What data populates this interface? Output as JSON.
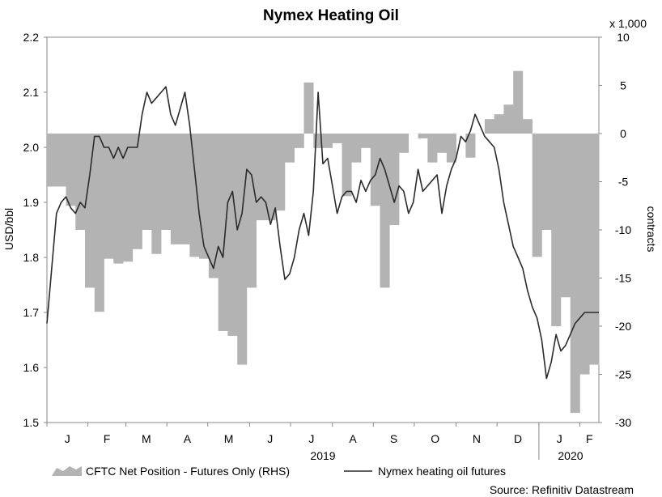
{
  "chart_data": {
    "type": "line+area",
    "title": "Nymex Heating Oil",
    "ylabel_left": "USD/bbl",
    "ylabel_right": "contracts",
    "right_multiplier": "x 1,000",
    "left_ylim": [
      1.5,
      2.2
    ],
    "left_ticks": [
      "1.5",
      "1.6",
      "1.7",
      "1.8",
      "1.9",
      "2.0",
      "2.1",
      "2.2"
    ],
    "right_ylim": [
      -30,
      10
    ],
    "right_ticks": [
      "-30",
      "-25",
      "-20",
      "-15",
      "-10",
      "-5",
      "0",
      "5",
      "10"
    ],
    "x_months": [
      "J",
      "F",
      "M",
      "A",
      "M",
      "J",
      "J",
      "A",
      "S",
      "O",
      "N",
      "D",
      "J",
      "F"
    ],
    "x_years": [
      "2019",
      "2020"
    ],
    "x_range_weeks": [
      0,
      58
    ],
    "month_starts_weeks": [
      0,
      4.3,
      8.3,
      12.6,
      16.9,
      21.3,
      25.6,
      30.0,
      34.3,
      38.6,
      43.0,
      47.3,
      51.7,
      56.0
    ],
    "series": [
      {
        "name": "CFTC Net Position - Futures Only (RHS)",
        "type": "area",
        "axis": "right",
        "x": [
          0,
          1,
          2,
          3,
          4,
          5,
          6,
          7,
          8,
          9,
          10,
          11,
          12,
          13,
          14,
          15,
          16,
          17,
          18,
          19,
          20,
          21,
          22,
          23,
          24,
          25,
          26,
          27,
          28,
          29,
          30,
          31,
          32,
          33,
          34,
          35,
          36,
          37,
          38,
          39,
          40,
          41,
          42,
          43,
          44,
          45,
          46,
          47,
          48,
          49,
          50,
          51,
          52,
          53,
          54,
          55,
          56,
          57,
          58
        ],
        "values": [
          -5.5,
          -5.5,
          -7.5,
          -10,
          -16,
          -18.5,
          -13,
          -13.5,
          -13.3,
          -12,
          -10,
          -12.5,
          -10,
          -11.5,
          -11.5,
          -12.8,
          -13,
          -15,
          -20.5,
          -21,
          -24,
          -16,
          -9,
          -9,
          -8,
          -3,
          -1.5,
          5.3,
          -1.5,
          -1.5,
          -1,
          -6.5,
          -3,
          -1.5,
          -7.5,
          -16,
          -9.5,
          -2,
          0,
          -0.5,
          -3,
          -2,
          -3,
          0,
          -2.5,
          0,
          1.5,
          2,
          3,
          6.5,
          1.5,
          -12.8,
          -10,
          -20,
          -17,
          -29,
          -25,
          -24,
          -24
        ]
      },
      {
        "name": "Nymex heating oil futures",
        "type": "line",
        "axis": "left",
        "x": [
          0,
          0.5,
          1,
          1.5,
          2,
          2.5,
          3,
          3.5,
          4,
          4.5,
          5,
          5.5,
          6,
          6.5,
          7,
          7.5,
          8,
          8.5,
          9,
          9.5,
          10,
          10.5,
          11,
          11.5,
          12,
          12.5,
          13,
          13.5,
          14,
          14.5,
          15,
          15.5,
          16,
          16.5,
          17,
          17.5,
          18,
          18.5,
          19,
          19.5,
          20,
          20.5,
          21,
          21.5,
          22,
          22.5,
          23,
          23.5,
          24,
          24.5,
          25,
          25.5,
          26,
          26.5,
          27,
          27.5,
          28,
          28.5,
          29,
          29.5,
          30,
          30.5,
          31,
          31.5,
          32,
          32.5,
          33,
          33.5,
          34,
          34.5,
          35,
          35.5,
          36,
          36.5,
          37,
          37.5,
          38,
          38.5,
          39,
          39.5,
          40,
          40.5,
          41,
          41.5,
          42,
          42.5,
          43,
          43.5,
          44,
          44.5,
          45,
          45.5,
          46,
          46.5,
          47,
          47.5,
          48,
          48.5,
          49,
          49.5,
          50,
          50.5,
          51,
          51.5,
          52,
          52.5,
          53,
          53.5,
          54,
          54.5,
          55,
          55.5,
          56,
          56.5,
          57,
          57.5,
          58
        ],
        "values": [
          1.68,
          1.78,
          1.88,
          1.9,
          1.91,
          1.89,
          1.88,
          1.9,
          1.89,
          1.95,
          2.02,
          2.02,
          2.0,
          2.0,
          1.98,
          2.0,
          1.98,
          2.0,
          2.0,
          2.0,
          2.06,
          2.1,
          2.08,
          2.09,
          2.1,
          2.11,
          2.06,
          2.04,
          2.07,
          2.1,
          2.04,
          1.96,
          1.88,
          1.82,
          1.8,
          1.78,
          1.82,
          1.8,
          1.9,
          1.92,
          1.85,
          1.88,
          1.96,
          1.95,
          1.9,
          1.91,
          1.9,
          1.86,
          1.89,
          1.82,
          1.76,
          1.77,
          1.8,
          1.85,
          1.88,
          1.84,
          1.92,
          2.1,
          1.97,
          1.98,
          1.93,
          1.88,
          1.91,
          1.92,
          1.92,
          1.9,
          1.94,
          1.92,
          1.94,
          1.95,
          1.98,
          1.96,
          1.93,
          1.9,
          1.93,
          1.92,
          1.88,
          1.9,
          1.96,
          1.92,
          1.93,
          1.94,
          1.95,
          1.88,
          1.93,
          1.96,
          1.98,
          2.02,
          2.01,
          2.03,
          2.06,
          2.04,
          2.02,
          2.01,
          2.0,
          1.96,
          1.9,
          1.86,
          1.82,
          1.8,
          1.78,
          1.74,
          1.71,
          1.69,
          1.65,
          1.58,
          1.61,
          1.66,
          1.63,
          1.64,
          1.66,
          1.68,
          1.69,
          1.7,
          1.7,
          1.7,
          1.7
        ]
      }
    ]
  },
  "legend": {
    "area_label": "CFTC Net Position - Futures Only (RHS)",
    "line_label": "Nymex heating oil futures"
  },
  "source": "Source: Refinitiv Datastream",
  "colors": {
    "area": "#b3b3b3",
    "line": "#2b2b2b",
    "axis": "#888888"
  }
}
